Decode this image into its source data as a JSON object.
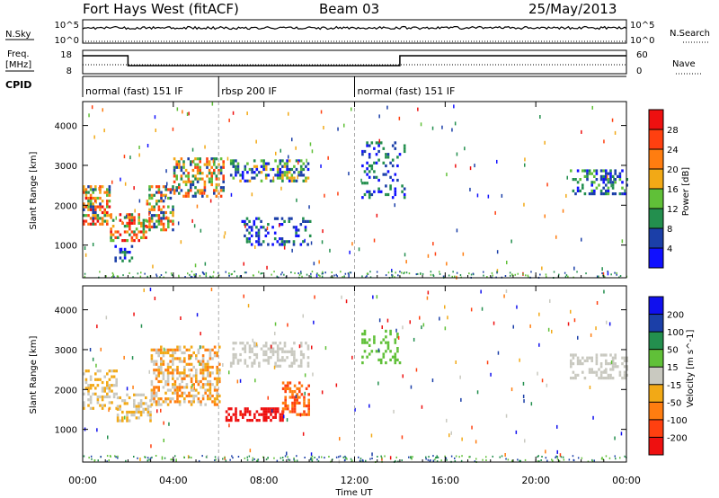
{
  "chart_data": {
    "type": "heatmap",
    "header": {
      "station": "Fort Hays West (fitACF)",
      "beam": "Beam 03",
      "date": "25/May/2013"
    },
    "strip_nsky": {
      "left_label": "N.Sky",
      "right_label": "N.Search",
      "left_ticks": [
        "10^5",
        "10^0"
      ],
      "right_ticks": [
        "10^5",
        "10^0"
      ]
    },
    "strip_freq": {
      "left_label": "Freq.",
      "left_unit": "[MHz]",
      "right_label": "Nave",
      "left_ticks": [
        "18",
        "8"
      ],
      "right_ticks": [
        "60",
        "0"
      ],
      "freq_steps": [
        {
          "t0": 0,
          "t1": 2,
          "level": "high"
        },
        {
          "t0": 2,
          "t1": 14,
          "level": "low"
        },
        {
          "t0": 14,
          "t1": 24,
          "level": "high"
        }
      ]
    },
    "cpid": {
      "label": "CPID",
      "segments": [
        {
          "t0": 0,
          "t1": 6,
          "name": "normal (fast) 151 IF"
        },
        {
          "t0": 6,
          "t1": 12,
          "name": "rbsp 200 IF"
        },
        {
          "t0": 12,
          "t1": 24,
          "name": "normal (fast) 151 IF"
        }
      ]
    },
    "x": {
      "label": "Time UT",
      "ticks": [
        "00:00",
        "04:00",
        "08:00",
        "12:00",
        "16:00",
        "20:00",
        "00:00"
      ],
      "tick_hours": [
        0,
        4,
        8,
        12,
        16,
        20,
        24
      ],
      "range": [
        0,
        24
      ]
    },
    "y": {
      "label": "Slant Range [km]",
      "ticks": [
        "1000",
        "2000",
        "3000",
        "4000"
      ],
      "tick_values": [
        1000,
        2000,
        3000,
        4000
      ],
      "range": [
        180,
        4600
      ]
    },
    "power": {
      "colorbar_label": "Power [dB]",
      "levels": [
        "4",
        "8",
        "12",
        "16",
        "20",
        "24",
        "28"
      ],
      "colors": [
        "#1010ff",
        "#1b3fa8",
        "#238f4e",
        "#60c038",
        "#f2a916",
        "#ff7d10",
        "#ff4010",
        "#ee1010"
      ],
      "blobs": [
        {
          "t0": 0.0,
          "t1": 1.2,
          "r0": 1500,
          "r1": 2500,
          "density": 0.55,
          "level": [
            1,
            7
          ]
        },
        {
          "t0": 1.2,
          "t1": 2.8,
          "r0": 1150,
          "r1": 1800,
          "density": 0.5,
          "level": [
            2,
            7
          ]
        },
        {
          "t0": 2.8,
          "t1": 4.0,
          "r0": 1400,
          "r1": 2500,
          "density": 0.5,
          "level": [
            1,
            6
          ]
        },
        {
          "t0": 4.0,
          "t1": 6.2,
          "r0": 2200,
          "r1": 3200,
          "density": 0.5,
          "level": [
            1,
            6
          ]
        },
        {
          "t0": 6.5,
          "t1": 10.0,
          "r0": 2600,
          "r1": 3150,
          "density": 0.45,
          "level": [
            0,
            4
          ]
        },
        {
          "t0": 7.0,
          "t1": 10.0,
          "r0": 1000,
          "r1": 1700,
          "density": 0.3,
          "level": [
            0,
            2
          ]
        },
        {
          "t0": 1.3,
          "t1": 2.2,
          "r0": 600,
          "r1": 1000,
          "density": 0.3,
          "level": [
            0,
            2
          ]
        },
        {
          "t0": 12.3,
          "t1": 14.2,
          "r0": 2200,
          "r1": 3600,
          "density": 0.2,
          "level": [
            0,
            2
          ]
        },
        {
          "t0": 21.5,
          "t1": 24.0,
          "r0": 2300,
          "r1": 2900,
          "density": 0.35,
          "level": [
            0,
            3
          ]
        }
      ]
    },
    "velocity": {
      "colorbar_label": "Velocity [m s^-1]",
      "levels": [
        "200",
        "100",
        "50",
        "15",
        "-15",
        "-50",
        "-100",
        "-200"
      ],
      "colors": [
        "#1010ee",
        "#1b3fa8",
        "#238f4e",
        "#60c038",
        "#c9c9c0",
        "#f2a916",
        "#ff7d10",
        "#ff4010",
        "#ee1010"
      ],
      "blobs": [
        {
          "t0": 0.0,
          "t1": 1.5,
          "r0": 1500,
          "r1": 2500,
          "density": 0.45,
          "level": [
            4,
            5
          ]
        },
        {
          "t0": 1.5,
          "t1": 3.0,
          "r0": 1200,
          "r1": 1900,
          "density": 0.45,
          "level": [
            4,
            5
          ]
        },
        {
          "t0": 3.0,
          "t1": 6.0,
          "r0": 1600,
          "r1": 3100,
          "density": 0.5,
          "level": [
            4,
            6
          ]
        },
        {
          "t0": 6.5,
          "t1": 10.0,
          "r0": 2600,
          "r1": 3200,
          "density": 0.4,
          "level": [
            4,
            4
          ]
        },
        {
          "t0": 6.3,
          "t1": 8.8,
          "r0": 1250,
          "r1": 1550,
          "density": 0.5,
          "level": [
            8,
            8
          ]
        },
        {
          "t0": 8.8,
          "t1": 10.0,
          "r0": 1400,
          "r1": 2200,
          "density": 0.45,
          "level": [
            6,
            7
          ]
        },
        {
          "t0": 12.3,
          "t1": 14.0,
          "r0": 2700,
          "r1": 3500,
          "density": 0.25,
          "level": [
            3,
            3
          ]
        },
        {
          "t0": 21.5,
          "t1": 24.0,
          "r0": 2300,
          "r1": 2900,
          "density": 0.35,
          "level": [
            4,
            4
          ]
        }
      ]
    }
  }
}
